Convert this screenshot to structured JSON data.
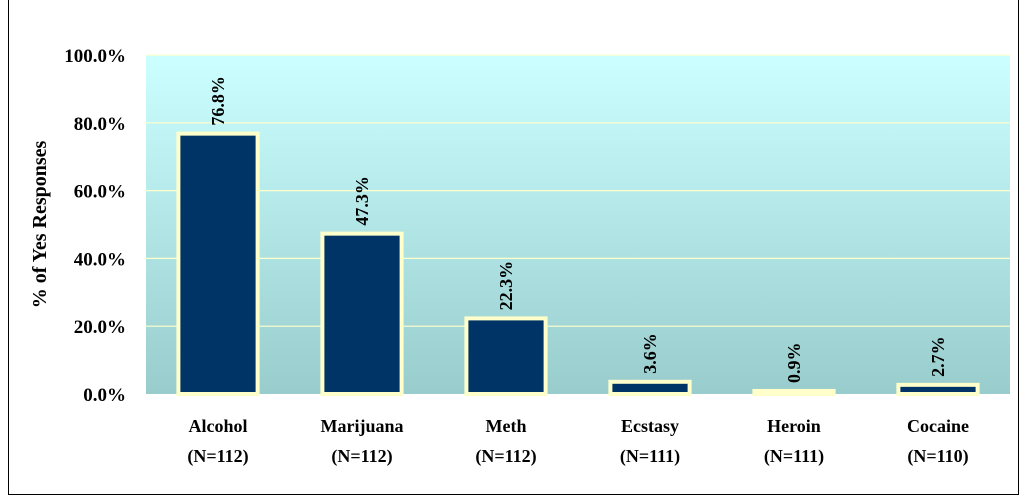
{
  "chart_data": {
    "type": "bar",
    "title": "",
    "ylabel": "% of Yes Responses",
    "xlabel": "",
    "ylim": [
      0,
      100
    ],
    "yticks": [
      "0.0%",
      "20.0%",
      "40.0%",
      "60.0%",
      "80.0%",
      "100.0%"
    ],
    "categories": [
      {
        "name": "Alcohol",
        "n": "(N=112)"
      },
      {
        "name": "Marijuana",
        "n": "(N=112)"
      },
      {
        "name": "Meth",
        "n": "(N=112)"
      },
      {
        "name": "Ecstasy",
        "n": "(N=111)"
      },
      {
        "name": "Heroin",
        "n": "(N=111)"
      },
      {
        "name": "Cocaine",
        "n": "(N=110)"
      }
    ],
    "values": [
      76.8,
      47.3,
      22.3,
      3.6,
      0.9,
      2.7
    ],
    "data_labels": [
      "76.8%",
      "47.3%",
      "22.3%",
      "3.6%",
      "0.9%",
      "2.7%"
    ],
    "grid": true,
    "colors": {
      "bar_fill": "#003366",
      "bar_border": "#FFFFCC",
      "plot_top": "#CCFFFF",
      "plot_bottom": "#99CCCC",
      "gridline": "#FFFFCC"
    }
  }
}
